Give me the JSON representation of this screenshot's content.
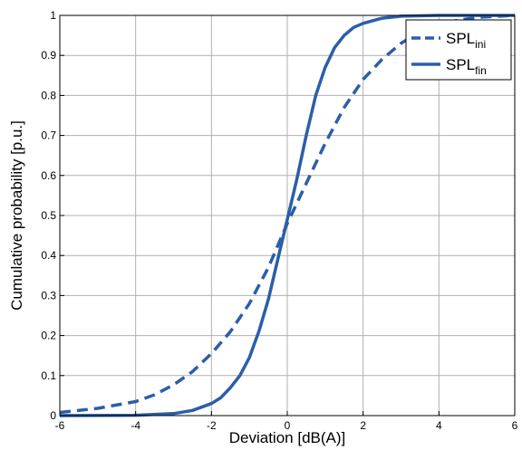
{
  "chart_data": {
    "type": "line",
    "xlabel": "Deviation [dB(A)]",
    "ylabel": "Cumulative probability [p.u.]",
    "xlim": [
      -6,
      6
    ],
    "ylim": [
      0,
      1
    ],
    "xticks": [
      "-6",
      "-4",
      "-2",
      "0",
      "2",
      "4",
      "6"
    ],
    "yticks": [
      "0",
      "0.1",
      "0.2",
      "0.3",
      "0.4",
      "0.5",
      "0.6",
      "0.7",
      "0.8",
      "0.9",
      "1"
    ],
    "grid": true,
    "legend_position": "top-right",
    "colors": {
      "line": "#2b5ea8"
    },
    "series": [
      {
        "name": "SPL",
        "name_sub": "ini",
        "style": "dashed",
        "x": [
          -6,
          -5,
          -4,
          -3.5,
          -3,
          -2.5,
          -2,
          -1.5,
          -1,
          -0.5,
          0,
          0.5,
          1,
          1.5,
          2,
          2.5,
          3,
          3.5,
          4,
          5,
          6
        ],
        "y": [
          0.008,
          0.018,
          0.035,
          0.052,
          0.077,
          0.11,
          0.155,
          0.21,
          0.28,
          0.37,
          0.48,
          0.58,
          0.68,
          0.77,
          0.84,
          0.89,
          0.93,
          0.96,
          0.98,
          0.995,
          1.0
        ]
      },
      {
        "name": "SPL",
        "name_sub": "fin",
        "style": "solid",
        "x": [
          -6,
          -4,
          -3,
          -2.5,
          -2,
          -1.75,
          -1.5,
          -1.25,
          -1,
          -0.75,
          -0.5,
          -0.25,
          0,
          0.25,
          0.5,
          0.75,
          1,
          1.25,
          1.5,
          1.75,
          2,
          2.5,
          3,
          4,
          6
        ],
        "y": [
          0,
          0.001,
          0.005,
          0.013,
          0.03,
          0.045,
          0.07,
          0.1,
          0.145,
          0.21,
          0.29,
          0.39,
          0.49,
          0.59,
          0.7,
          0.8,
          0.87,
          0.92,
          0.95,
          0.97,
          0.98,
          0.993,
          0.998,
          1.0,
          1.0
        ]
      }
    ]
  }
}
